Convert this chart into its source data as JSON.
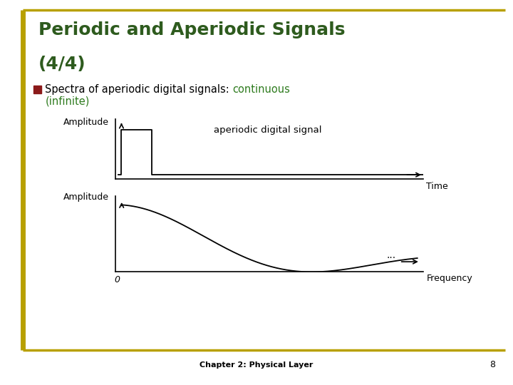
{
  "title_line1": "Periodic and Aperiodic Signals",
  "title_line2": "(4/4)",
  "title_color": "#2E5B1E",
  "bullet_text_black": "Spectra of aperiodic digital signals: ",
  "bullet_text_green": "continuous",
  "bullet_text_green2": "(infinite)",
  "green_color": "#2E7B1E",
  "black_color": "#000000",
  "bg_color": "#FFFFFF",
  "border_color": "#B8A000",
  "footer_text": "Chapter 2: Physical Layer",
  "page_number": "8",
  "top_graph_ylabel": "Amplitude",
  "top_graph_label": "aperiodic digital signal",
  "top_graph_xlabel": "Time",
  "bottom_graph_ylabel": "Amplitude",
  "bottom_graph_xlabel": "Frequency",
  "bottom_graph_origin": "0",
  "ellipsis": "..."
}
